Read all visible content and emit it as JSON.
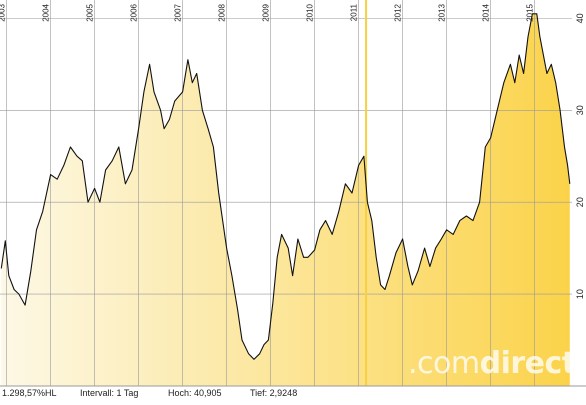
{
  "brand": {
    "pre": ".com",
    "bold": "direct"
  },
  "footer": {
    "change": "1.298,57%HL",
    "interval": "Intervall: 1 Tag",
    "high": "Hoch: 40,905",
    "low": "Tief: 2,9248"
  },
  "colors": {
    "line": "#111111",
    "fill_light": "#fdf8e6",
    "fill_dark": "#fbd34a",
    "grid": "#9a9a9a",
    "highlight": "#f5d142"
  },
  "chart_data": {
    "type": "area",
    "title": "",
    "xlabel": "",
    "ylabel": "",
    "x_ticks": [
      "2003",
      "2004",
      "2005",
      "2006",
      "2007",
      "2008",
      "2009",
      "2010",
      "2011",
      "2012",
      "2013",
      "2014",
      "2015"
    ],
    "y_ticks": [
      10,
      20,
      30,
      40
    ],
    "ylim": [
      0,
      42
    ],
    "xlim": [
      2002.85,
      2015.85
    ],
    "grid": true,
    "highlight_x": 2011.17,
    "series": [
      {
        "x": [
          2002.88,
          2002.97,
          2003.05,
          2003.17,
          2003.28,
          2003.42,
          2003.55,
          2003.68,
          2003.82,
          2004.0,
          2004.15,
          2004.3,
          2004.45,
          2004.6,
          2004.72,
          2004.85,
          2005.0,
          2005.12,
          2005.25,
          2005.4,
          2005.55,
          2005.7,
          2005.85,
          2006.0,
          2006.12,
          2006.25,
          2006.35,
          2006.5,
          2006.58,
          2006.7,
          2006.82,
          2007.0,
          2007.12,
          2007.22,
          2007.32,
          2007.45,
          2007.58,
          2007.7,
          2007.82,
          2008.0,
          2008.12,
          2008.25,
          2008.35,
          2008.5,
          2008.62,
          2008.75,
          2008.85,
          2008.95,
          2009.05,
          2009.15,
          2009.25,
          2009.4,
          2009.5,
          2009.62,
          2009.75,
          2009.85,
          2010.0,
          2010.12,
          2010.25,
          2010.4,
          2010.55,
          2010.7,
          2010.85,
          2011.0,
          2011.12,
          2011.2,
          2011.3,
          2011.4,
          2011.5,
          2011.6,
          2011.7,
          2011.85,
          2012.0,
          2012.12,
          2012.22,
          2012.35,
          2012.5,
          2012.62,
          2012.75,
          2012.88,
          2013.0,
          2013.15,
          2013.3,
          2013.45,
          2013.6,
          2013.75,
          2013.88,
          2014.0,
          2014.15,
          2014.3,
          2014.45,
          2014.55,
          2014.65,
          2014.75,
          2014.85,
          2014.95,
          2015.05,
          2015.12,
          2015.2,
          2015.28,
          2015.38,
          2015.48,
          2015.58,
          2015.68,
          2015.75,
          2015.8
        ],
        "y": [
          12.8,
          15.8,
          12,
          10.5,
          10,
          8.8,
          12.5,
          17,
          19,
          23,
          22.5,
          24,
          26,
          25,
          24.5,
          20,
          21.5,
          20,
          23.5,
          24.5,
          26,
          22,
          23.5,
          28,
          32,
          35,
          32,
          30,
          28,
          29,
          31,
          32,
          35.5,
          33,
          34,
          30,
          28,
          26,
          21,
          15,
          12,
          8.3,
          5,
          3.5,
          2.9,
          3.5,
          4.5,
          5,
          9,
          14,
          16.5,
          15,
          12,
          16,
          14,
          14,
          14.8,
          17,
          18,
          16.5,
          19,
          22,
          21,
          24,
          25,
          20,
          18,
          14,
          11,
          10.5,
          12,
          14.5,
          16,
          13,
          11,
          12.5,
          15,
          13,
          15,
          16,
          17,
          16.5,
          18,
          18.5,
          18,
          20,
          26,
          27,
          30,
          33,
          35,
          33,
          36,
          34,
          38,
          40.5,
          40.5,
          38,
          36,
          34,
          35,
          33,
          30,
          26,
          24,
          22
        ]
      }
    ]
  }
}
